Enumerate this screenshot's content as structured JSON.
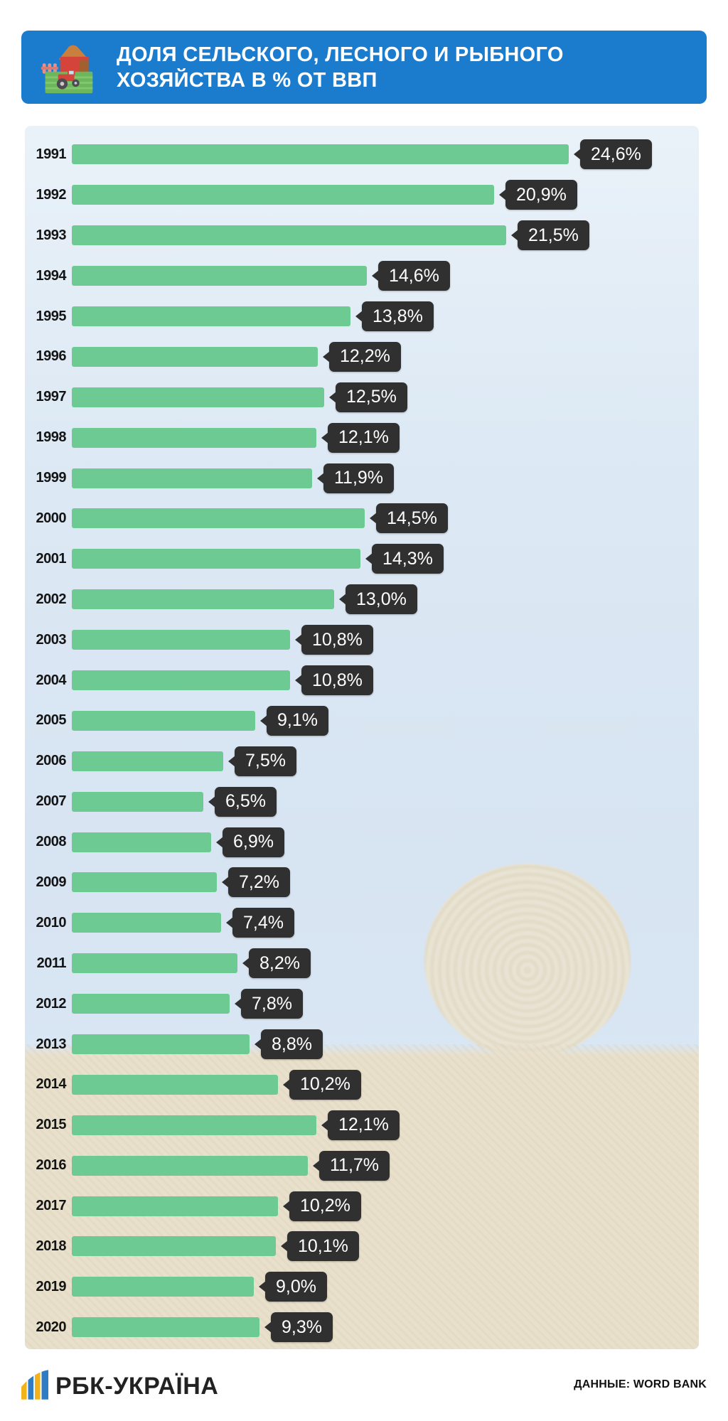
{
  "header": {
    "title_line1": "ДОЛЯ СЕЛЬСКОГО, ЛЕСНОГО И РЫБНОГО",
    "title_line2": "ХОЗЯЙСТВА В % ОТ ВВП",
    "icon": "farm-icon"
  },
  "chart_data": {
    "type": "bar",
    "orientation": "horizontal",
    "title": "ДОЛЯ СЕЛЬСКОГО, ЛЕСНОГО И РЫБНОГО ХОЗЯЙСТВА В % ОТ ВВП",
    "unit": "%",
    "xlim": [
      0,
      26
    ],
    "grid": false,
    "legend": "none",
    "categories": [
      "1991",
      "1992",
      "1993",
      "1994",
      "1995",
      "1996",
      "1997",
      "1998",
      "1999",
      "2000",
      "2001",
      "2002",
      "2003",
      "2004",
      "2005",
      "2006",
      "2007",
      "2008",
      "2009",
      "2010",
      "2011",
      "2012",
      "2013",
      "2014",
      "2015",
      "2016",
      "2017",
      "2018",
      "2019",
      "2020"
    ],
    "values": [
      24.6,
      20.9,
      21.5,
      14.6,
      13.8,
      12.2,
      12.5,
      12.1,
      11.9,
      14.5,
      14.3,
      13.0,
      10.8,
      10.8,
      9.1,
      7.5,
      6.5,
      6.9,
      7.2,
      7.4,
      8.2,
      7.8,
      8.8,
      10.2,
      12.1,
      11.7,
      10.2,
      10.1,
      9.0,
      9.3
    ],
    "labels": [
      "24,6%",
      "20,9%",
      "21,5%",
      "14,6%",
      "13,8%",
      "12,2%",
      "12,5%",
      "12,1%",
      "11,9%",
      "14,5%",
      "14,3%",
      "13,0%",
      "10,8%",
      "10,8%",
      "9,1%",
      "7,5%",
      "6,5%",
      "6,9%",
      "7,2%",
      "7,4%",
      "8,2%",
      "7,8%",
      "8,8%",
      "10,2%",
      "12,1%",
      "11,7%",
      "10,2%",
      "10,1%",
      "9,0%",
      "9,3%"
    ]
  },
  "footer": {
    "logo_text": "РБК-УКРАЇНА",
    "source": "ДАННЫЕ: WORD BANK"
  },
  "icons": {
    "header_icon": "farm-icon",
    "logo_icon": "rbc-logo-icon"
  },
  "colors": {
    "header_bg": "#1b7cce",
    "bar_color": "#6dca92",
    "label_bg": "#303030",
    "sky": "#dce8f4",
    "field": "#e9e0cc",
    "title_text": "#ffffff",
    "year_text": "#141414",
    "label_text": "#ffffff"
  }
}
